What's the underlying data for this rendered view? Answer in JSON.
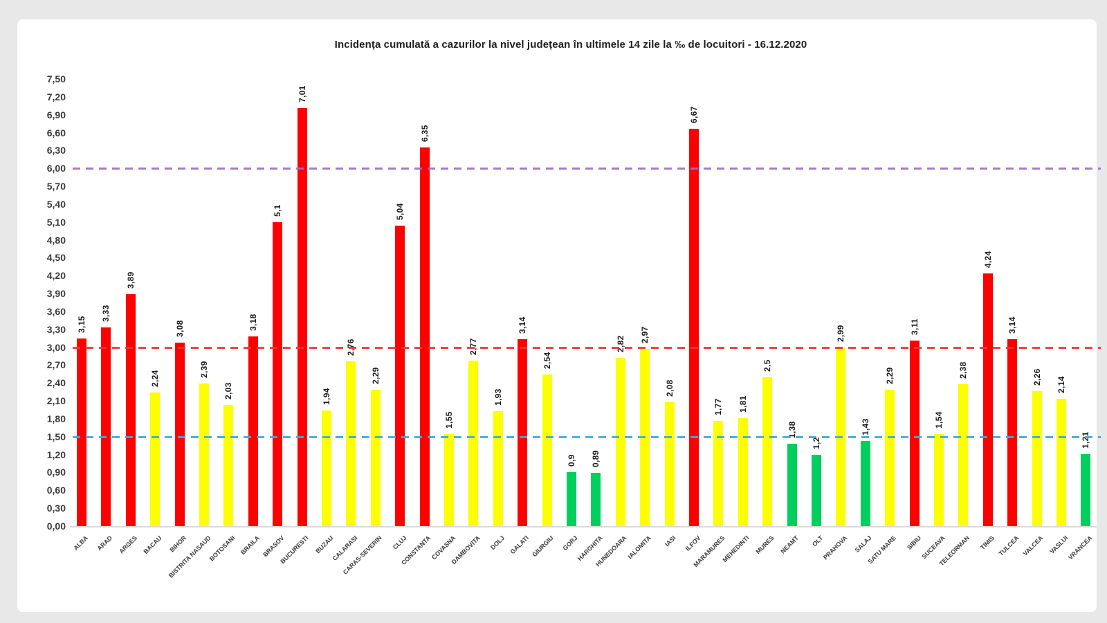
{
  "chart_data": {
    "type": "bar",
    "title": "Incidența cumulată a cazurilor la nivel județean în ultimele 14 zile la ‰ de locuitori - 16.12.2020",
    "categories": [
      "ALBA",
      "ARAD",
      "ARGES",
      "BACAU",
      "BIHOR",
      "BISTRITA NASAUD",
      "BOTOSANI",
      "BRAILA",
      "BRASOV",
      "BUCURESTI",
      "BUZAU",
      "CALARASI",
      "CARAS-SEVERIN",
      "CLUJ",
      "CONSTANTA",
      "COVASNA",
      "DAMBOVITA",
      "DOLJ",
      "GALATI",
      "GIURGIU",
      "GORJ",
      "HARGHITA",
      "HUNEDOARA",
      "IALOMITA",
      "IASI",
      "ILFOV",
      "MARAMURES",
      "MEHEDINTI",
      "MURES",
      "NEAMT",
      "OLT",
      "PRAHOVA",
      "SALAJ",
      "SATU MARE",
      "SIBIU",
      "SUCEAVA",
      "TELEORMAN",
      "TIMIS",
      "TULCEA",
      "VALCEA",
      "VASLUI",
      "VRANCEA"
    ],
    "values": [
      3.15,
      3.33,
      3.89,
      2.24,
      3.08,
      2.39,
      2.03,
      3.18,
      5.1,
      7.01,
      1.94,
      2.76,
      2.29,
      5.04,
      6.35,
      1.55,
      2.77,
      1.93,
      3.14,
      2.54,
      0.9,
      0.89,
      2.82,
      2.97,
      2.08,
      6.67,
      1.77,
      1.81,
      2.5,
      1.38,
      1.2,
      2.99,
      1.43,
      2.29,
      3.11,
      1.54,
      2.38,
      4.24,
      3.14,
      2.26,
      2.14,
      1.21
    ],
    "value_labels": [
      "3,15",
      "3,33",
      "3,89",
      "2,24",
      "3,08",
      "2,39",
      "2,03",
      "3,18",
      "5,1",
      "7,01",
      "1,94",
      "2,76",
      "2,29",
      "5,04",
      "6,35",
      "1,55",
      "2,77",
      "1,93",
      "3,14",
      "2,54",
      "0,9",
      "0,89",
      "2,82",
      "2,97",
      "2,08",
      "6,67",
      "1,77",
      "1,81",
      "2,5",
      "1,38",
      "1,2",
      "2,99",
      "1,43",
      "2,29",
      "3,11",
      "1,54",
      "2,38",
      "4,24",
      "3,14",
      "2,26",
      "2,14",
      "1,21"
    ],
    "ylim": [
      0,
      7.5
    ],
    "ytick_step": 0.3,
    "ytick_labels": [
      "0,00",
      "0,30",
      "0,60",
      "0,90",
      "1,20",
      "1,50",
      "1,80",
      "2,10",
      "2,40",
      "2,70",
      "3,00",
      "3,30",
      "3,60",
      "3,90",
      "4,20",
      "4,50",
      "4,80",
      "5,10",
      "5,40",
      "5,70",
      "6,00",
      "6,30",
      "6,60",
      "6,90",
      "7,20",
      "7,50"
    ],
    "grid": "off",
    "legend": "none",
    "bar_color_thresholds": {
      "red_min": 3.0,
      "yellow_min": 1.5
    },
    "colors": {
      "red": "#fe0000",
      "yellow": "#fdfe00",
      "green": "#00ce5e"
    },
    "reference_lines": [
      {
        "value": 6.0,
        "color": "#9e6cc8",
        "style": "dashed"
      },
      {
        "value": 3.0,
        "color": "#f india23232",
        "style": "dashed"
      },
      {
        "value": 1.5,
        "color": "#35aee0",
        "style": "dashed"
      }
    ]
  }
}
